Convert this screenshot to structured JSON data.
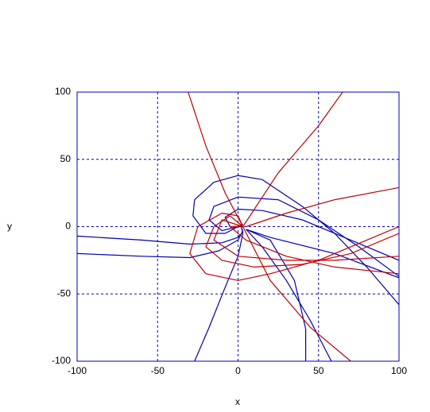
{
  "chart_data": {
    "type": "line",
    "x_label": "x",
    "y_label": "y",
    "xlim": [
      -100,
      100
    ],
    "ylim": [
      -100,
      100
    ],
    "xticks": [
      -100,
      -50,
      0,
      50,
      100
    ],
    "yticks": [
      -100,
      -50,
      0,
      50,
      100
    ],
    "grid": true,
    "series": [
      {
        "color": "#0000b0",
        "x": [
          100,
          80,
          60,
          40,
          15,
          0,
          -15,
          -27,
          -28,
          -20,
          -8,
          0,
          3
        ],
        "values": [
          -58,
          -30,
          -5,
          15,
          35,
          38,
          33,
          20,
          8,
          -5,
          -5,
          0,
          2
        ]
      },
      {
        "color": "#0000b0",
        "x": [
          100,
          75,
          50,
          25,
          0,
          -15,
          -18,
          -10,
          0,
          3
        ],
        "values": [
          -37,
          -15,
          5,
          20,
          22,
          15,
          5,
          -3,
          0,
          1
        ]
      },
      {
        "color": "#0000b0",
        "x": [
          100,
          70,
          40,
          15,
          0,
          -8,
          -5,
          2
        ],
        "values": [
          -25,
          -10,
          5,
          12,
          13,
          7,
          0,
          0
        ]
      },
      {
        "color": "#0000b0",
        "x": [
          -100,
          -60,
          -30,
          -10,
          0,
          3,
          2
        ],
        "values": [
          -7,
          -10,
          -13,
          -12,
          -8,
          -4,
          0
        ]
      },
      {
        "color": "#0000b0",
        "x": [
          -100,
          -60,
          -30,
          -12,
          0,
          3
        ],
        "values": [
          -20,
          -22,
          -23,
          -18,
          -10,
          -3
        ]
      },
      {
        "color": "#0000b0",
        "x": [
          -27,
          -18,
          -8,
          0,
          3,
          2
        ],
        "values": [
          -100,
          -75,
          -45,
          -22,
          -5,
          0
        ]
      },
      {
        "color": "#0000b0",
        "x": [
          58,
          45,
          30,
          15,
          5
        ],
        "values": [
          -100,
          -70,
          -40,
          -15,
          -2
        ]
      },
      {
        "color": "#0000b0",
        "x": [
          42,
          42,
          35,
          20,
          5
        ],
        "values": [
          -100,
          -76,
          -40,
          -10,
          -2
        ]
      },
      {
        "color": "#0000b0",
        "x": [
          100,
          60,
          20,
          5
        ],
        "values": [
          -38,
          -20,
          -8,
          -2
        ]
      },
      {
        "color": "#c00000",
        "x": [
          3,
          25,
          50,
          65
        ],
        "values": [
          0,
          40,
          75,
          100
        ]
      },
      {
        "color": "#c00000",
        "x": [
          -31,
          -20,
          -8,
          3
        ],
        "values": [
          100,
          60,
          25,
          0
        ]
      },
      {
        "color": "#c00000",
        "x": [
          100,
          60,
          30,
          5
        ],
        "values": [
          29,
          20,
          10,
          0
        ]
      },
      {
        "color": "#c00000",
        "x": [
          3,
          20,
          45,
          70
        ],
        "values": [
          0,
          -40,
          -75,
          -100
        ]
      },
      {
        "color": "#c00000",
        "x": [
          100,
          80,
          50,
          20,
          0,
          -20,
          -30,
          -25,
          -10,
          0,
          3
        ],
        "values": [
          0,
          -10,
          -25,
          -35,
          -40,
          -35,
          -20,
          0,
          10,
          8,
          0
        ]
      },
      {
        "color": "#c00000",
        "x": [
          100,
          70,
          40,
          10,
          -10,
          -20,
          -15,
          -5,
          3
        ],
        "values": [
          -5,
          -20,
          -28,
          -30,
          -25,
          -15,
          0,
          8,
          0
        ]
      },
      {
        "color": "#c00000",
        "x": [
          100,
          60,
          30,
          0,
          -15,
          -10,
          3
        ],
        "values": [
          -22,
          -25,
          -25,
          -22,
          -10,
          5,
          0
        ]
      },
      {
        "color": "#c00000",
        "x": [
          100,
          60,
          30,
          5,
          -5,
          3
        ],
        "values": [
          -35,
          -30,
          -22,
          -10,
          0,
          0
        ]
      }
    ]
  }
}
